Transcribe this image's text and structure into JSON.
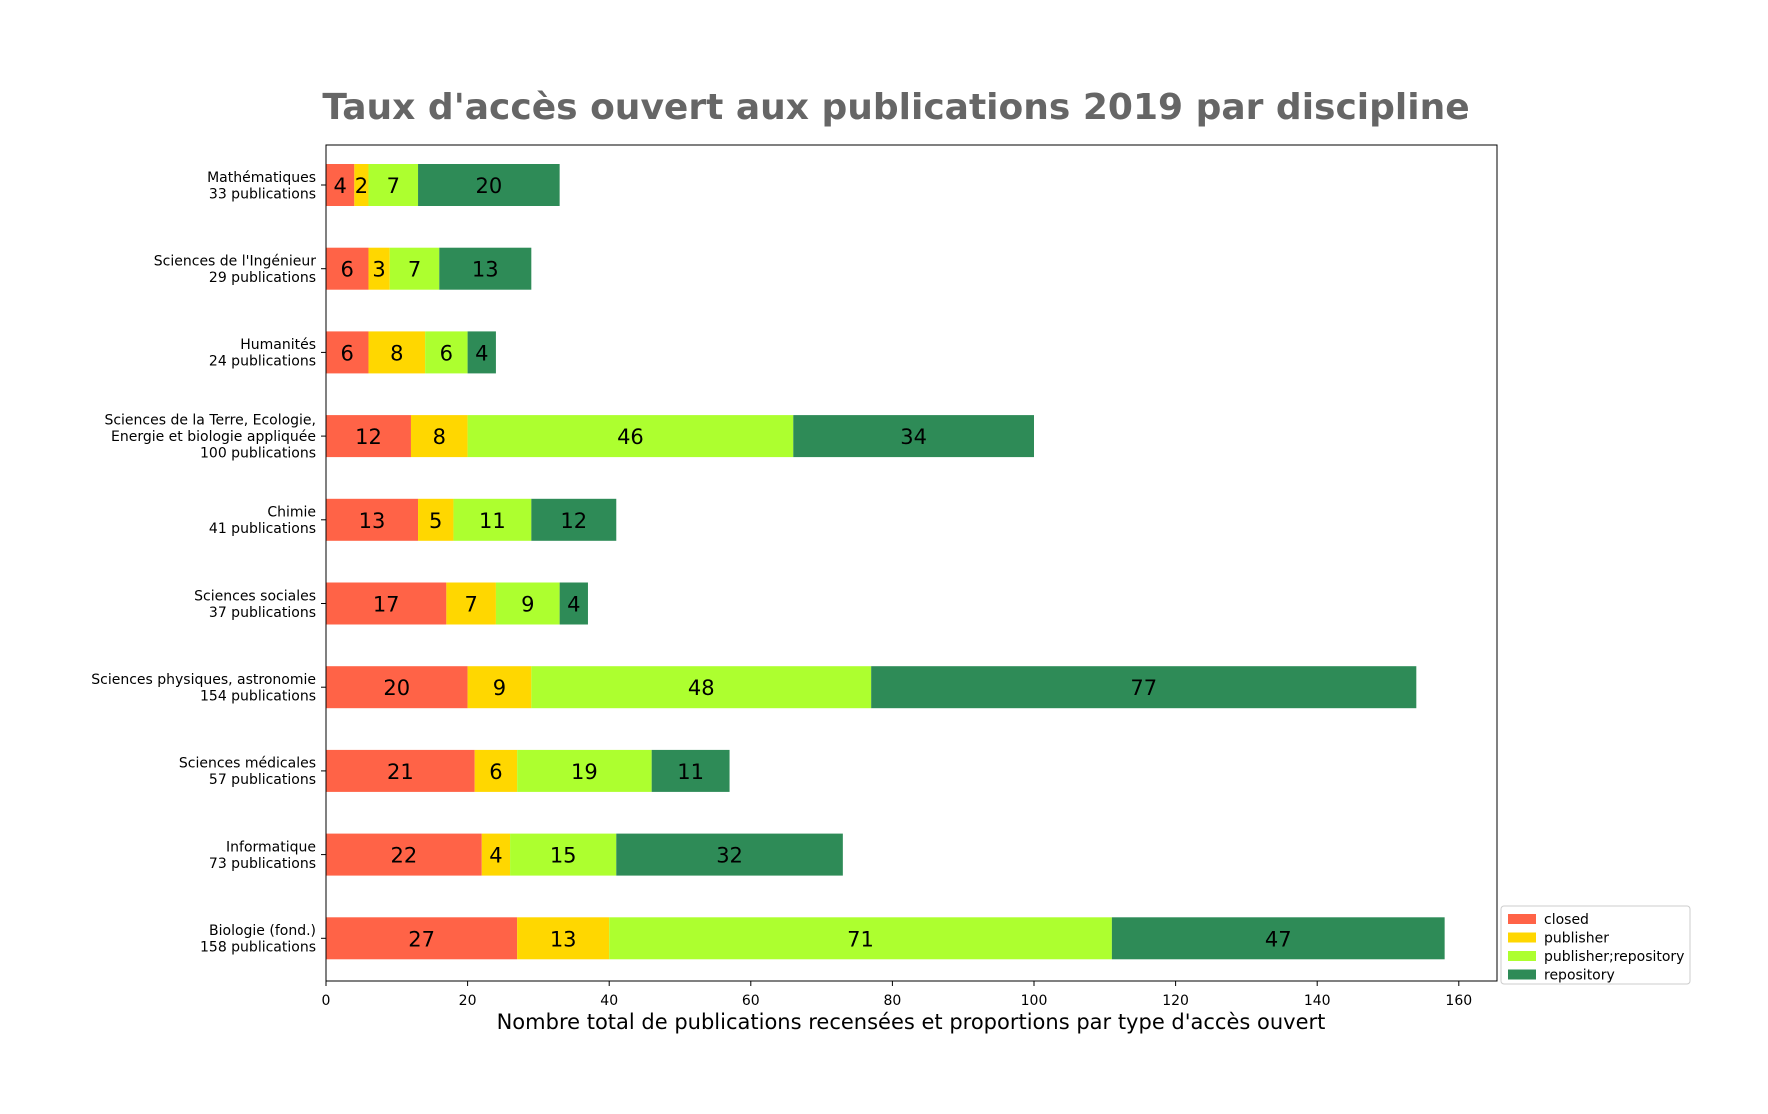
{
  "chart_data": {
    "type": "bar",
    "orientation": "horizontal",
    "stacked": true,
    "title": "Taux d'accès ouvert aux publications 2019 par discipline",
    "title_color": "#666666",
    "xlabel": "Nombre total de publications recensées et proportions par type d'accès ouvert",
    "ylabel": "",
    "xlim": [
      0,
      165
    ],
    "xticks": [
      0,
      20,
      40,
      60,
      80,
      100,
      120,
      140,
      160
    ],
    "grid": false,
    "legend_position": "bottom-right, outside plot",
    "categories": [
      [
        "Mathématiques",
        "33 publications"
      ],
      [
        "Sciences de l'Ingénieur",
        "29 publications"
      ],
      [
        "Humanités",
        "24 publications"
      ],
      [
        "Sciences de la Terre, Ecologie,",
        "Energie et biologie appliquée",
        "100 publications"
      ],
      [
        "Chimie",
        "41 publications"
      ],
      [
        "Sciences sociales",
        "37 publications"
      ],
      [
        "Sciences physiques, astronomie",
        "154 publications"
      ],
      [
        "Sciences médicales",
        "57 publications"
      ],
      [
        "Informatique",
        "73 publications"
      ],
      [
        "Biologie (fond.)",
        "158 publications"
      ]
    ],
    "series": [
      {
        "name": "closed",
        "color": "#ff6347",
        "values": [
          4,
          6,
          6,
          12,
          13,
          17,
          20,
          21,
          22,
          27
        ]
      },
      {
        "name": "publisher",
        "color": "#ffd700",
        "values": [
          2,
          3,
          8,
          8,
          5,
          7,
          9,
          6,
          4,
          13
        ]
      },
      {
        "name": "publisher;repository",
        "color": "#adff2f",
        "values": [
          7,
          7,
          6,
          46,
          11,
          9,
          48,
          19,
          15,
          71
        ]
      },
      {
        "name": "repository",
        "color": "#2e8b57",
        "values": [
          20,
          13,
          4,
          34,
          12,
          4,
          77,
          11,
          32,
          47
        ]
      }
    ]
  }
}
